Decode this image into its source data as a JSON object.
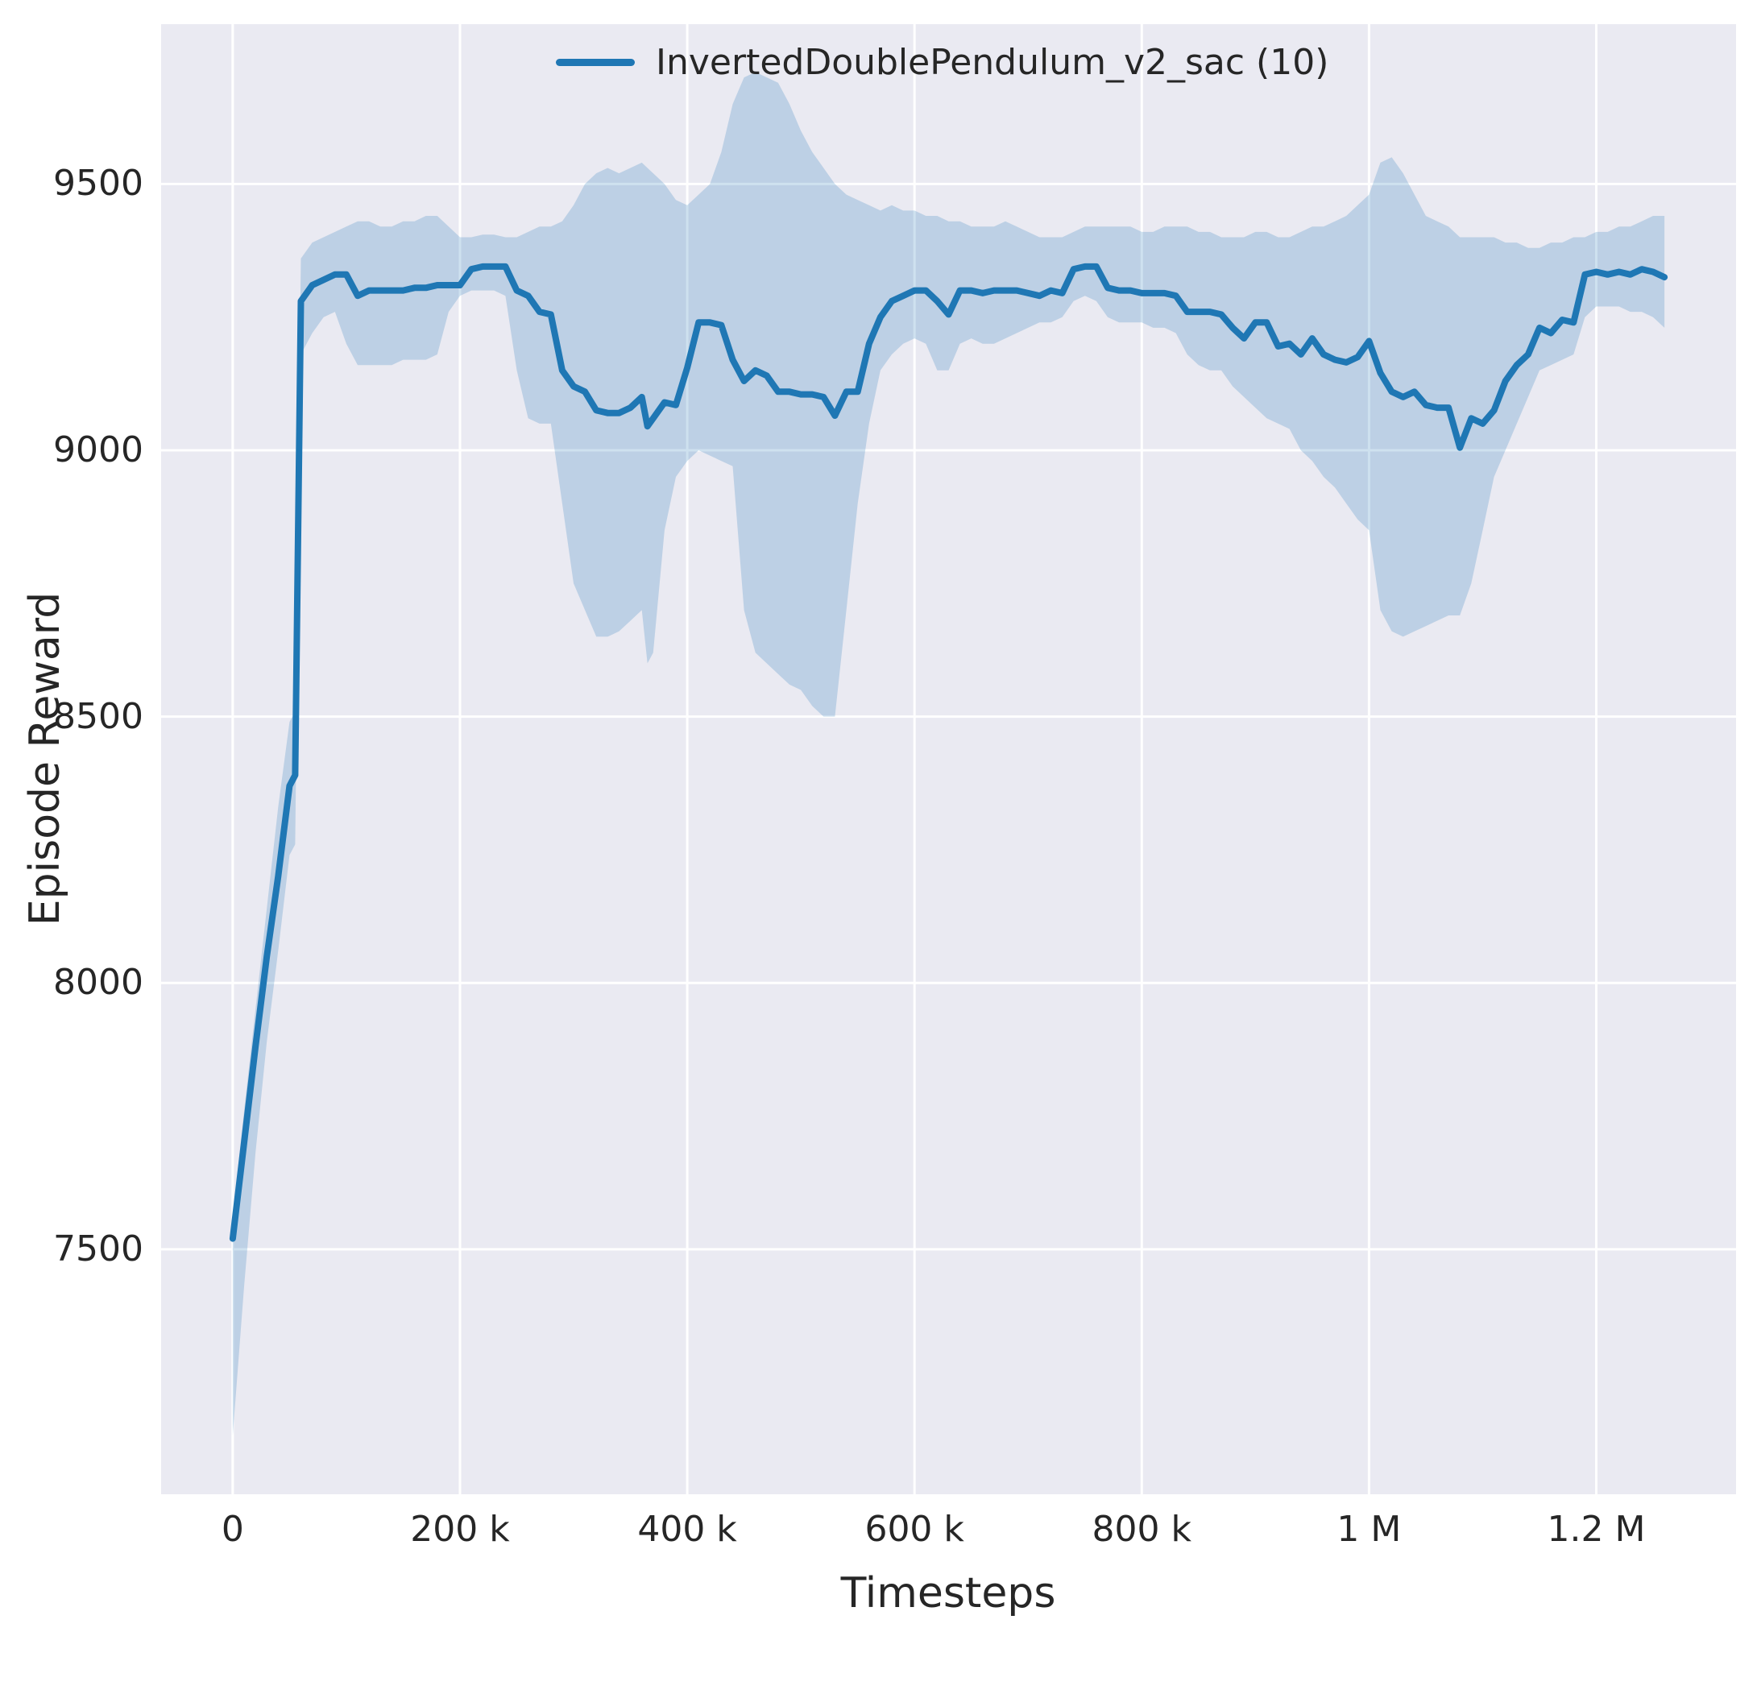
{
  "style": {
    "background": "#ffffff",
    "plot_bg": "#eaeaf2",
    "grid_color": "#ffffff",
    "line_color": "#1f77b4",
    "band_alpha": 0.22,
    "text_color": "#262626"
  },
  "chart_data": {
    "type": "line",
    "title": "",
    "xlabel": "Timesteps",
    "ylabel": "Episode Reward",
    "legend_position": "upper center",
    "grid": true,
    "xlim": [
      -63000,
      1323000
    ],
    "ylim": [
      7040,
      9800
    ],
    "xticks": {
      "values": [
        0,
        200000,
        400000,
        600000,
        800000,
        1000000,
        1200000
      ],
      "labels": [
        "0",
        "200 k",
        "400 k",
        "600 k",
        "800 k",
        "1 M",
        "1.2 M"
      ]
    },
    "yticks": {
      "values": [
        7500,
        8000,
        8500,
        9000,
        9500
      ],
      "labels": [
        "7500",
        "8000",
        "8500",
        "9000",
        "9500"
      ]
    },
    "series": [
      {
        "name": "InvertedDoublePendulum_v2_sac (10)",
        "x": [
          0,
          10000,
          20000,
          30000,
          40000,
          50000,
          55000,
          60000,
          70000,
          80000,
          90000,
          100000,
          110000,
          120000,
          130000,
          140000,
          150000,
          160000,
          170000,
          180000,
          190000,
          200000,
          210000,
          220000,
          230000,
          240000,
          250000,
          260000,
          270000,
          280000,
          290000,
          300000,
          310000,
          320000,
          330000,
          340000,
          350000,
          360000,
          365000,
          370000,
          380000,
          390000,
          400000,
          410000,
          420000,
          430000,
          440000,
          450000,
          460000,
          470000,
          480000,
          490000,
          500000,
          510000,
          520000,
          530000,
          540000,
          550000,
          560000,
          570000,
          580000,
          590000,
          600000,
          610000,
          620000,
          630000,
          640000,
          650000,
          660000,
          670000,
          680000,
          690000,
          700000,
          710000,
          720000,
          730000,
          740000,
          750000,
          760000,
          770000,
          780000,
          790000,
          800000,
          810000,
          820000,
          830000,
          840000,
          850000,
          860000,
          870000,
          880000,
          890000,
          900000,
          910000,
          920000,
          930000,
          940000,
          950000,
          960000,
          970000,
          980000,
          990000,
          1000000,
          1010000,
          1020000,
          1030000,
          1040000,
          1050000,
          1060000,
          1070000,
          1080000,
          1090000,
          1100000,
          1110000,
          1120000,
          1130000,
          1140000,
          1150000,
          1160000,
          1170000,
          1180000,
          1190000,
          1200000,
          1210000,
          1220000,
          1230000,
          1240000,
          1250000,
          1260000
        ],
        "mean": [
          7520,
          7700,
          7880,
          8050,
          8200,
          8370,
          8390,
          9280,
          9310,
          9320,
          9330,
          9330,
          9290,
          9300,
          9300,
          9300,
          9300,
          9305,
          9305,
          9310,
          9310,
          9310,
          9340,
          9345,
          9345,
          9345,
          9300,
          9290,
          9260,
          9255,
          9150,
          9120,
          9110,
          9075,
          9070,
          9070,
          9080,
          9100,
          9045,
          9060,
          9090,
          9085,
          9155,
          9240,
          9240,
          9235,
          9170,
          9130,
          9150,
          9140,
          9110,
          9110,
          9105,
          9105,
          9100,
          9065,
          9110,
          9110,
          9200,
          9250,
          9280,
          9290,
          9300,
          9300,
          9280,
          9255,
          9300,
          9300,
          9295,
          9300,
          9300,
          9300,
          9295,
          9290,
          9300,
          9295,
          9340,
          9345,
          9345,
          9305,
          9300,
          9300,
          9295,
          9295,
          9295,
          9290,
          9260,
          9260,
          9260,
          9255,
          9230,
          9210,
          9240,
          9240,
          9195,
          9200,
          9180,
          9210,
          9180,
          9170,
          9165,
          9175,
          9205,
          9145,
          9110,
          9100,
          9110,
          9085,
          9080,
          9080,
          9005,
          9060,
          9050,
          9075,
          9130,
          9160,
          9180,
          9230,
          9220,
          9245,
          9240,
          9330,
          9335,
          9330,
          9335,
          9330,
          9340,
          9335,
          9325
        ],
        "low": [
          7150,
          7430,
          7680,
          7890,
          8060,
          8240,
          8260,
          9180,
          9220,
          9250,
          9260,
          9200,
          9160,
          9160,
          9160,
          9160,
          9170,
          9170,
          9170,
          9180,
          9260,
          9290,
          9300,
          9300,
          9300,
          9290,
          9150,
          9060,
          9050,
          9050,
          8900,
          8750,
          8700,
          8650,
          8650,
          8660,
          8680,
          8700,
          8600,
          8620,
          8850,
          8950,
          8980,
          9000,
          8990,
          8980,
          8970,
          8700,
          8620,
          8600,
          8580,
          8560,
          8550,
          8520,
          8500,
          8500,
          8700,
          8900,
          9050,
          9150,
          9180,
          9200,
          9210,
          9200,
          9150,
          9150,
          9200,
          9210,
          9200,
          9200,
          9210,
          9220,
          9230,
          9240,
          9240,
          9250,
          9280,
          9290,
          9280,
          9250,
          9240,
          9240,
          9240,
          9230,
          9230,
          9220,
          9180,
          9160,
          9150,
          9150,
          9120,
          9100,
          9080,
          9060,
          9050,
          9040,
          9000,
          8980,
          8950,
          8930,
          8900,
          8870,
          8850,
          8700,
          8660,
          8650,
          8660,
          8670,
          8680,
          8690,
          8690,
          8750,
          8850,
          8950,
          9000,
          9050,
          9100,
          9150,
          9160,
          9170,
          9180,
          9250,
          9270,
          9270,
          9270,
          9260,
          9260,
          9250,
          9230
        ],
        "high": [
          7560,
          7760,
          7950,
          8140,
          8330,
          8490,
          8510,
          9360,
          9390,
          9400,
          9410,
          9420,
          9430,
          9430,
          9420,
          9420,
          9430,
          9430,
          9440,
          9440,
          9420,
          9400,
          9400,
          9405,
          9405,
          9400,
          9400,
          9410,
          9420,
          9420,
          9430,
          9460,
          9500,
          9520,
          9530,
          9520,
          9530,
          9540,
          9530,
          9520,
          9500,
          9470,
          9460,
          9480,
          9500,
          9560,
          9650,
          9700,
          9710,
          9700,
          9690,
          9650,
          9600,
          9560,
          9530,
          9500,
          9480,
          9470,
          9460,
          9450,
          9460,
          9450,
          9450,
          9440,
          9440,
          9430,
          9430,
          9420,
          9420,
          9420,
          9430,
          9420,
          9410,
          9400,
          9400,
          9400,
          9410,
          9420,
          9420,
          9420,
          9420,
          9420,
          9410,
          9410,
          9420,
          9420,
          9420,
          9410,
          9410,
          9400,
          9400,
          9400,
          9410,
          9410,
          9400,
          9400,
          9410,
          9420,
          9420,
          9430,
          9440,
          9460,
          9480,
          9540,
          9550,
          9520,
          9480,
          9440,
          9430,
          9420,
          9400,
          9400,
          9400,
          9400,
          9390,
          9390,
          9380,
          9380,
          9390,
          9390,
          9400,
          9400,
          9410,
          9410,
          9420,
          9420,
          9430,
          9440,
          9440
        ]
      }
    ]
  }
}
